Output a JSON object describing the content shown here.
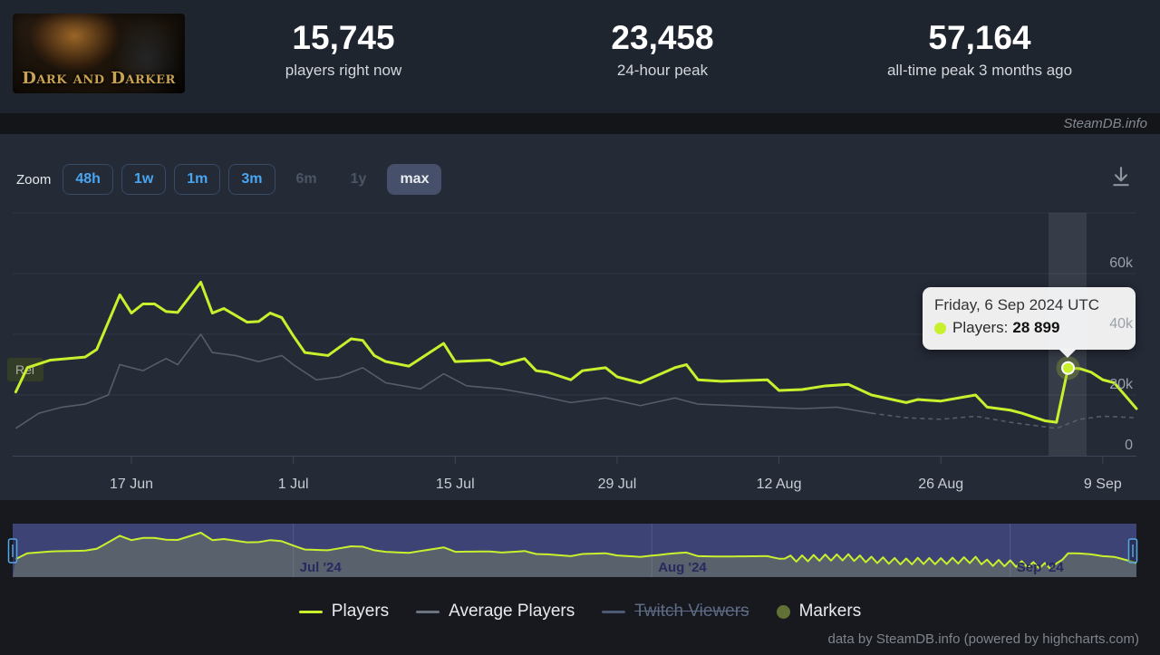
{
  "header": {
    "game_title": "Dark and Darker",
    "stats": [
      {
        "value": "15,745",
        "label": "players right now"
      },
      {
        "value": "23,458",
        "label": "24-hour peak"
      },
      {
        "value": "57,164",
        "label": "all-time peak 3 months ago"
      }
    ],
    "brand": "SteamDB.info"
  },
  "toolbar": {
    "zoom_label": "Zoom",
    "buttons": [
      {
        "label": "48h",
        "state": "enabled"
      },
      {
        "label": "1w",
        "state": "enabled"
      },
      {
        "label": "1m",
        "state": "enabled"
      },
      {
        "label": "3m",
        "state": "enabled"
      },
      {
        "label": "6m",
        "state": "disabled"
      },
      {
        "label": "1y",
        "state": "disabled"
      },
      {
        "label": "max",
        "state": "selected"
      }
    ],
    "download_icon": "download-icon"
  },
  "chart_data": {
    "type": "line",
    "title": "",
    "xlabel": "",
    "ylabel": "",
    "x_range": [
      "2024-06-07",
      "2024-09-12"
    ],
    "ylim": [
      0,
      80000
    ],
    "grid": true,
    "legend_position": "bottom",
    "x_ticks": [
      {
        "label": "17 Jun",
        "date": "2024-06-17"
      },
      {
        "label": "1 Jul",
        "date": "2024-07-01"
      },
      {
        "label": "15 Jul",
        "date": "2024-07-15"
      },
      {
        "label": "29 Jul",
        "date": "2024-07-29"
      },
      {
        "label": "12 Aug",
        "date": "2024-08-12"
      },
      {
        "label": "26 Aug",
        "date": "2024-08-26"
      },
      {
        "label": "9 Sep",
        "date": "2024-09-09"
      }
    ],
    "y_ticks": [
      {
        "label": "0",
        "value": 0
      },
      {
        "label": "20k",
        "value": 20000
      },
      {
        "label": "40k",
        "value": 40000
      },
      {
        "label": "60k",
        "value": 60000
      }
    ],
    "series": [
      {
        "name": "Players",
        "color": "#c9f02d",
        "points": [
          [
            "2024-06-07",
            21000
          ],
          [
            "2024-06-08",
            29000
          ],
          [
            "2024-06-10",
            31500
          ],
          [
            "2024-06-13",
            32500
          ],
          [
            "2024-06-14",
            35000
          ],
          [
            "2024-06-16",
            53000
          ],
          [
            "2024-06-17",
            47000
          ],
          [
            "2024-06-18",
            50000
          ],
          [
            "2024-06-19",
            50000
          ],
          [
            "2024-06-20",
            47500
          ],
          [
            "2024-06-21",
            47200
          ],
          [
            "2024-06-23",
            57164
          ],
          [
            "2024-06-24",
            47000
          ],
          [
            "2024-06-25",
            48500
          ],
          [
            "2024-06-27",
            44000
          ],
          [
            "2024-06-28",
            44200
          ],
          [
            "2024-06-29",
            47000
          ],
          [
            "2024-06-30",
            45500
          ],
          [
            "2024-07-01",
            39500
          ],
          [
            "2024-07-02",
            34000
          ],
          [
            "2024-07-04",
            33000
          ],
          [
            "2024-07-06",
            38500
          ],
          [
            "2024-07-07",
            38000
          ],
          [
            "2024-07-08",
            33000
          ],
          [
            "2024-07-09",
            31000
          ],
          [
            "2024-07-11",
            29500
          ],
          [
            "2024-07-14",
            37000
          ],
          [
            "2024-07-15",
            31000
          ],
          [
            "2024-07-18",
            31500
          ],
          [
            "2024-07-19",
            30000
          ],
          [
            "2024-07-21",
            32000
          ],
          [
            "2024-07-22",
            28000
          ],
          [
            "2024-07-23",
            27500
          ],
          [
            "2024-07-25",
            25000
          ],
          [
            "2024-07-26",
            28000
          ],
          [
            "2024-07-28",
            29000
          ],
          [
            "2024-07-29",
            26000
          ],
          [
            "2024-07-31",
            24000
          ],
          [
            "2024-08-03",
            29000
          ],
          [
            "2024-08-04",
            30000
          ],
          [
            "2024-08-05",
            25000
          ],
          [
            "2024-08-07",
            24500
          ],
          [
            "2024-08-11",
            25000
          ],
          [
            "2024-08-12",
            21500
          ],
          [
            "2024-08-14",
            21800
          ],
          [
            "2024-08-16",
            23000
          ],
          [
            "2024-08-18",
            23500
          ],
          [
            "2024-08-20",
            20000
          ],
          [
            "2024-08-23",
            17500
          ],
          [
            "2024-08-24",
            18500
          ],
          [
            "2024-08-26",
            18000
          ],
          [
            "2024-08-29",
            20000
          ],
          [
            "2024-08-30",
            16000
          ],
          [
            "2024-09-01",
            15000
          ],
          [
            "2024-09-02",
            14000
          ],
          [
            "2024-09-04",
            11500
          ],
          [
            "2024-09-05",
            11000
          ],
          [
            "2024-09-06",
            28899
          ],
          [
            "2024-09-07",
            28700
          ],
          [
            "2024-09-08",
            27500
          ],
          [
            "2024-09-09",
            25000
          ],
          [
            "2024-09-10",
            24000
          ],
          [
            "2024-09-12",
            15500
          ]
        ]
      },
      {
        "name": "Average Players",
        "color": "#5b6270",
        "dash_from": "2024-08-20",
        "points": [
          [
            "2024-06-07",
            9000
          ],
          [
            "2024-06-09",
            14000
          ],
          [
            "2024-06-11",
            16000
          ],
          [
            "2024-06-13",
            17000
          ],
          [
            "2024-06-15",
            20000
          ],
          [
            "2024-06-16",
            30000
          ],
          [
            "2024-06-18",
            28000
          ],
          [
            "2024-06-20",
            32000
          ],
          [
            "2024-06-21",
            30000
          ],
          [
            "2024-06-23",
            40000
          ],
          [
            "2024-06-24",
            34000
          ],
          [
            "2024-06-26",
            33000
          ],
          [
            "2024-06-28",
            31000
          ],
          [
            "2024-06-30",
            33000
          ],
          [
            "2024-07-01",
            30000
          ],
          [
            "2024-07-03",
            25000
          ],
          [
            "2024-07-05",
            26000
          ],
          [
            "2024-07-07",
            29000
          ],
          [
            "2024-07-09",
            24000
          ],
          [
            "2024-07-12",
            22000
          ],
          [
            "2024-07-14",
            27000
          ],
          [
            "2024-07-16",
            23000
          ],
          [
            "2024-07-19",
            22000
          ],
          [
            "2024-07-22",
            20000
          ],
          [
            "2024-07-25",
            17500
          ],
          [
            "2024-07-28",
            19000
          ],
          [
            "2024-07-31",
            16500
          ],
          [
            "2024-08-03",
            19000
          ],
          [
            "2024-08-05",
            17000
          ],
          [
            "2024-08-08",
            16500
          ],
          [
            "2024-08-11",
            16000
          ],
          [
            "2024-08-14",
            15500
          ],
          [
            "2024-08-17",
            16000
          ],
          [
            "2024-08-20",
            14000
          ],
          [
            "2024-08-23",
            12500
          ],
          [
            "2024-08-26",
            12000
          ],
          [
            "2024-08-29",
            13000
          ],
          [
            "2024-09-01",
            11000
          ],
          [
            "2024-09-03",
            10000
          ],
          [
            "2024-09-05",
            9000
          ],
          [
            "2024-09-07",
            12000
          ],
          [
            "2024-09-09",
            13000
          ],
          [
            "2024-09-12",
            12500
          ]
        ]
      },
      {
        "name": "Twitch Viewers",
        "color": "#4d5a74",
        "disabled": true,
        "points": []
      }
    ],
    "marker_flag": {
      "label": "Rel",
      "date": "2024-06-07"
    },
    "tooltip": {
      "title": "Friday, 6 Sep 2024 UTC",
      "series_label": "Players:",
      "value": "28 899",
      "date": "2024-09-06",
      "value_num": 28899
    },
    "navigator": {
      "months": [
        {
          "label": "Jul '24",
          "date": "2024-07-01"
        },
        {
          "label": "Aug '24",
          "date": "2024-08-01"
        },
        {
          "label": "Sep '24",
          "date": "2024-09-01"
        }
      ]
    },
    "legend": [
      {
        "label": "Players",
        "type": "line",
        "color": "#c9f02d"
      },
      {
        "label": "Average Players",
        "type": "line",
        "color": "#6b7380"
      },
      {
        "label": "Twitch Viewers",
        "type": "line",
        "color": "#4d5a74",
        "disabled": true
      },
      {
        "label": "Markers",
        "type": "circle",
        "color": "#5f7134"
      }
    ]
  },
  "credits": "data by SteamDB.info (powered by highcharts.com)"
}
